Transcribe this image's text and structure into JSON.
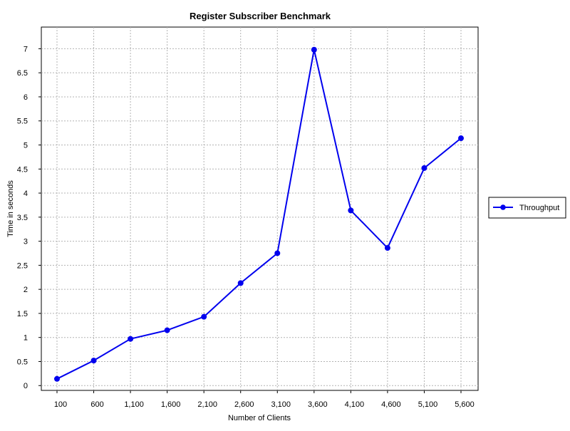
{
  "chart_data": {
    "type": "line",
    "title": "Register Subscriber Benchmark",
    "xlabel": "Number of Clients",
    "ylabel": "Time in seconds",
    "categories": [
      "100",
      "600",
      "1,100",
      "1,600",
      "2,100",
      "2,600",
      "3,100",
      "3,600",
      "4,100",
      "4,600",
      "5,100",
      "5,600"
    ],
    "series": [
      {
        "name": "Throughput",
        "color": "#0000ee",
        "values": [
          0.14,
          0.52,
          0.97,
          1.15,
          1.43,
          2.13,
          2.75,
          6.98,
          3.64,
          2.86,
          4.52,
          5.14
        ]
      }
    ],
    "ylim": [
      -0.1,
      7.45
    ],
    "y_ticks": [
      "0",
      "0.5",
      "1",
      "1.5",
      "2",
      "2.5",
      "3",
      "3.5",
      "4",
      "4.5",
      "5",
      "5.5",
      "6",
      "6.5",
      "7"
    ],
    "grid": true,
    "legend_position": "right"
  }
}
